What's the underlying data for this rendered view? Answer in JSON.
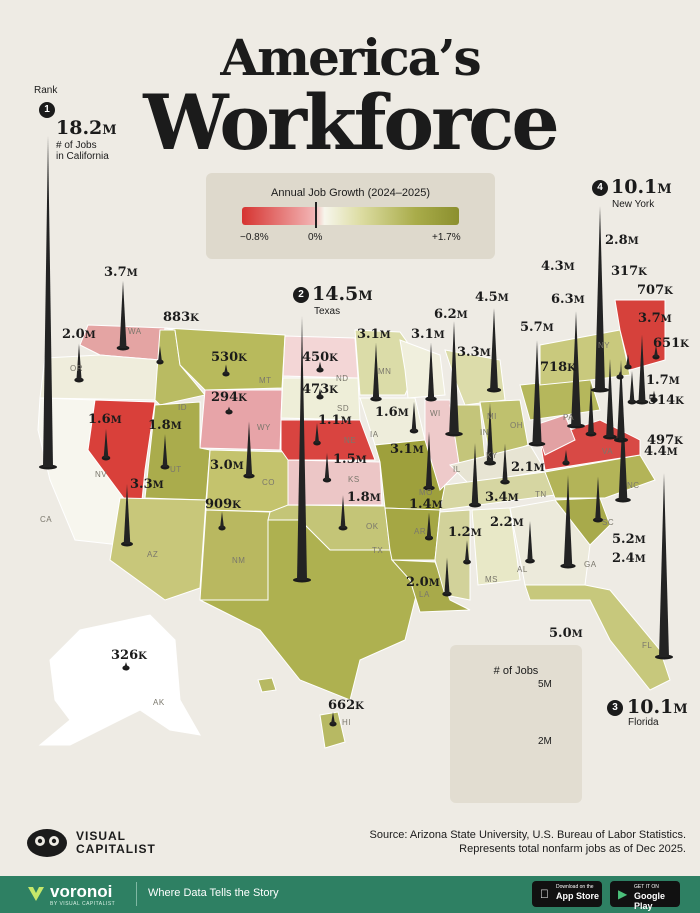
{
  "title": {
    "line1": "America’s",
    "line2": "Workforce"
  },
  "legend": {
    "title": "Annual Job Growth (2024–2025)",
    "min_label": "−0.8%",
    "zero_label": "0%",
    "max_label": "+1.7%",
    "colors": {
      "negative": "#d63431",
      "zero": "#f7f6ec",
      "positive": "#8b8f2e"
    }
  },
  "top": {
    "rank_label": "Rank",
    "california": {
      "rank": "1",
      "num": "18.2",
      "unit": "M",
      "sub1": "# of Jobs",
      "sub2": "in California"
    },
    "texas": {
      "rank": "2",
      "num": "14.5",
      "unit": "M",
      "sub": "Texas"
    },
    "florida": {
      "rank": "3",
      "num": "10.1",
      "unit": "M",
      "sub": "Florida"
    },
    "newyork": {
      "rank": "4",
      "num": "10.1",
      "unit": "M",
      "sub": "New York"
    }
  },
  "states": [
    {
      "abbr": "WA",
      "num": "3.7",
      "unit": "M"
    },
    {
      "abbr": "OR",
      "num": "2.0",
      "unit": "M"
    },
    {
      "abbr": "ID",
      "num": "883",
      "unit": "K"
    },
    {
      "abbr": "MT",
      "num": "530",
      "unit": "K"
    },
    {
      "abbr": "WY",
      "num": "294",
      "unit": "K"
    },
    {
      "abbr": "NV",
      "num": "1.6",
      "unit": "M"
    },
    {
      "abbr": "UT",
      "num": "1.8",
      "unit": "M"
    },
    {
      "abbr": "CO",
      "num": "3.0",
      "unit": "M"
    },
    {
      "abbr": "AZ",
      "num": "3.3",
      "unit": "M"
    },
    {
      "abbr": "NM",
      "num": "909",
      "unit": "K"
    },
    {
      "abbr": "ND",
      "num": "450",
      "unit": "K"
    },
    {
      "abbr": "SD",
      "num": "473",
      "unit": "K"
    },
    {
      "abbr": "NE",
      "num": "1.1",
      "unit": "M"
    },
    {
      "abbr": "KS",
      "num": "1.5",
      "unit": "M"
    },
    {
      "abbr": "OK",
      "num": "1.8",
      "unit": "M"
    },
    {
      "abbr": "MN",
      "num": "3.1",
      "unit": "M"
    },
    {
      "abbr": "IA",
      "num": "1.6",
      "unit": "M"
    },
    {
      "abbr": "MO",
      "num": "3.1",
      "unit": "M"
    },
    {
      "abbr": "AR",
      "num": "1.4",
      "unit": "M"
    },
    {
      "abbr": "LA",
      "num": "2.0",
      "unit": "M"
    },
    {
      "abbr": "WI",
      "num": "3.1",
      "unit": "M"
    },
    {
      "abbr": "IL",
      "num": "6.2",
      "unit": "M"
    },
    {
      "abbr": "MI",
      "num": "4.5",
      "unit": "M"
    },
    {
      "abbr": "IN",
      "num": "3.3",
      "unit": "M"
    },
    {
      "abbr": "OH",
      "num": "5.7",
      "unit": "M"
    },
    {
      "abbr": "KY",
      "num": "2.1",
      "unit": "M"
    },
    {
      "abbr": "TN",
      "num": "3.4",
      "unit": "M"
    },
    {
      "abbr": "MS",
      "num": "1.2",
      "unit": "M"
    },
    {
      "abbr": "AL",
      "num": "2.2",
      "unit": "M"
    },
    {
      "abbr": "GA",
      "num": "5.0",
      "unit": "M"
    },
    {
      "abbr": "SC",
      "num": "2.4",
      "unit": "M"
    },
    {
      "abbr": "NC",
      "num": "5.2",
      "unit": "M"
    },
    {
      "abbr": "VA",
      "num": "4.4",
      "unit": "M"
    },
    {
      "abbr": "WV",
      "num": "718",
      "unit": "K"
    },
    {
      "abbr": "PA",
      "num": "6.3",
      "unit": "M"
    },
    {
      "abbr": "NJ",
      "num": "4.3",
      "unit": "M"
    },
    {
      "abbr": "MA",
      "num": "3.7",
      "unit": "M"
    },
    {
      "abbr": "ME",
      "num": "651",
      "unit": "K"
    },
    {
      "abbr": "NH",
      "num": "707",
      "unit": "K"
    },
    {
      "abbr": "VT",
      "num": "317",
      "unit": "K"
    },
    {
      "abbr": "CT",
      "num": "1.7",
      "unit": "M"
    },
    {
      "abbr": "RI",
      "num": "514",
      "unit": "K"
    },
    {
      "abbr": "DE",
      "num": "497",
      "unit": "K"
    },
    {
      "abbr": "MD",
      "num": "2.8",
      "unit": "M"
    },
    {
      "abbr": "AK",
      "num": "326",
      "unit": "K"
    },
    {
      "abbr": "HI",
      "num": "662",
      "unit": "K"
    }
  ],
  "state_labels": [
    "WA",
    "OR",
    "CA",
    "NV",
    "ID",
    "MT",
    "WY",
    "UT",
    "CO",
    "AZ",
    "NM",
    "ND",
    "SD",
    "NE",
    "KS",
    "OK",
    "TX",
    "MN",
    "IA",
    "MO",
    "AR",
    "LA",
    "WI",
    "IL",
    "MI",
    "IN",
    "OH",
    "KY",
    "TN",
    "MS",
    "AL",
    "GA",
    "SC",
    "NC",
    "VA",
    "PA",
    "NY",
    "FL",
    "AK",
    "HI"
  ],
  "key": {
    "title": "# of Jobs",
    "label_5m": "5M",
    "label_2m": "2M"
  },
  "source": {
    "line1": "Source: Arizona State University, U.S. Bureau of Labor Statistics.",
    "line2": "Represents total nonfarm jobs as of Dec 2025."
  },
  "brand": {
    "line1": "VISUAL",
    "line2": "CAPITALIST"
  },
  "footer": {
    "name": "voronoi",
    "sub": "BY VISUAL CAPITALIST",
    "tagline": "Where Data Tells the Story",
    "appstore_small": "Download on the",
    "appstore_big": "App Store",
    "googleplay_small": "GET IT ON",
    "googleplay_big": "Google Play"
  }
}
